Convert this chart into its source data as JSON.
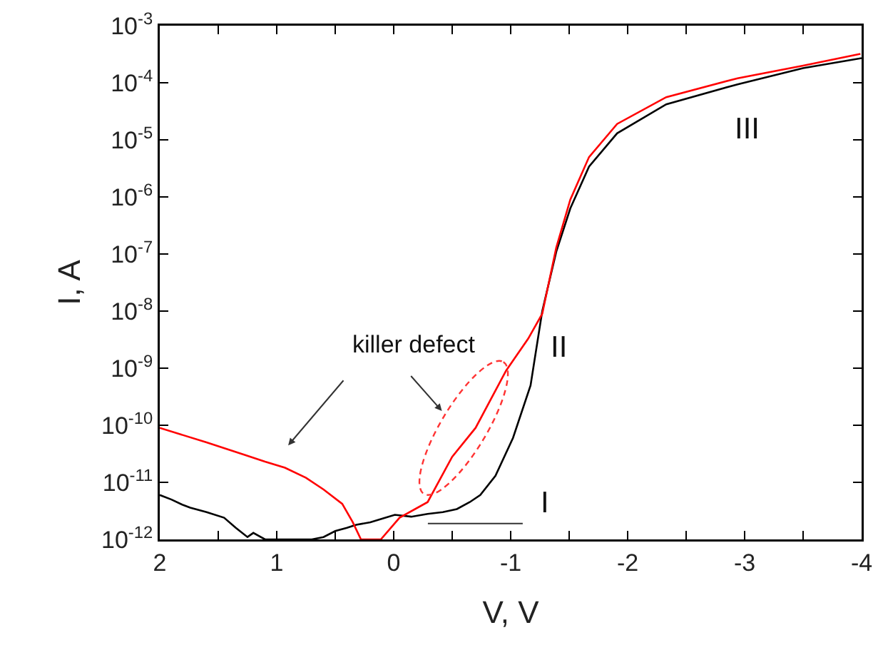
{
  "chart_data": {
    "type": "line",
    "xlabel": "V, V",
    "ylabel": "I, A",
    "log": "y",
    "grid": false,
    "marker": "none",
    "line_style": "solid",
    "xlim": [
      2,
      -4
    ],
    "xticks": [
      2,
      {
        "value": 1.5,
        "label": null
      },
      1,
      {
        "value": 0.5,
        "label": null
      },
      0,
      {
        "value": -0.5,
        "label": null
      },
      -1,
      {
        "value": -1.5,
        "label": null
      },
      -2,
      {
        "value": -2.5,
        "label": null
      },
      -3,
      {
        "value": -3.5,
        "label": null
      },
      -4
    ],
    "ylim": [
      1e-12,
      0.001
    ],
    "yticks": [
      {
        "value": 1e-12,
        "label": "10$^{-12}$"
      },
      {
        "value": 1e-11,
        "label": "10$^{-11}$"
      },
      {
        "value": 1e-10,
        "label": "10$^{-10}$"
      },
      {
        "value": 1e-09,
        "label": "10$^{-9}$"
      },
      {
        "value": 1e-08,
        "label": "10$^{-8}$"
      },
      {
        "value": 1e-07,
        "label": "10$^{-7}$"
      },
      {
        "value": 1e-06,
        "label": "10$^{-6}$"
      },
      {
        "value": 1e-05,
        "label": "10$^{-5}$"
      },
      {
        "value": 0.0001,
        "label": "10$^{-4}$"
      },
      {
        "value": 0.001,
        "label": "10$^{-3}$"
      }
    ],
    "series": [
      {
        "color": "#000000",
        "x": [
          2,
          1.9,
          1.8,
          1.74,
          1.6,
          1.45,
          1.35,
          1.25,
          1.2,
          1.1,
          0.9,
          0.7,
          0.6,
          0.5,
          0.4,
          0.32,
          0.2,
          0.1,
          -0.01,
          -0.15,
          -0.29,
          -0.42,
          -0.54,
          -0.65,
          -0.74,
          -0.87,
          -1.02,
          -1.17,
          -1.27,
          -1.39,
          -1.51,
          -1.67,
          -1.91,
          -2.33,
          -2.94,
          -3.5,
          -4
        ],
        "values": [
          6e-12,
          5e-12,
          4e-12,
          3.6e-12,
          3e-12,
          2.4e-12,
          1.6e-12,
          1.1e-12,
          1.3e-12,
          1e-12,
          1e-12,
          1e-12,
          1.1e-12,
          1.4e-12,
          1.6e-12,
          1.8e-12,
          2e-12,
          2.3e-12,
          2.7e-12,
          2.5e-12,
          2.8e-12,
          3e-12,
          3.4e-12,
          4.5e-12,
          6e-12,
          1.3e-11,
          6e-11,
          5e-10,
          1e-08,
          1.1e-07,
          6.3e-07,
          3.4e-06,
          1.3e-05,
          4.2e-05,
          9.4e-05,
          0.00018,
          0.00027
        ]
      },
      {
        "color": "#ff0000",
        "x": [
          2,
          1.6,
          1.27,
          1.1,
          0.93,
          0.75,
          0.6,
          0.44,
          0.35,
          0.28,
          0.2,
          0.11,
          -0.05,
          -0.29,
          -0.5,
          -0.7,
          -0.96,
          -1.15,
          -1.27,
          -1.39,
          -1.51,
          -1.67,
          -1.91,
          -2.33,
          -2.94,
          -3.5,
          -3.99
        ],
        "values": [
          9e-11,
          5e-11,
          3e-11,
          2.3e-11,
          1.8e-11,
          1.2e-11,
          7.5e-12,
          4.2e-12,
          2e-12,
          1e-12,
          1e-12,
          1e-12,
          2.4e-12,
          4.5e-12,
          2.8e-11,
          9e-11,
          9e-10,
          3.3e-09,
          9e-09,
          1.3e-07,
          9e-07,
          5e-06,
          1.9e-05,
          5.6e-05,
          0.00012,
          0.0002,
          0.00032
        ]
      }
    ],
    "annotations": [
      "killer defect",
      "I",
      "II",
      "III"
    ]
  }
}
